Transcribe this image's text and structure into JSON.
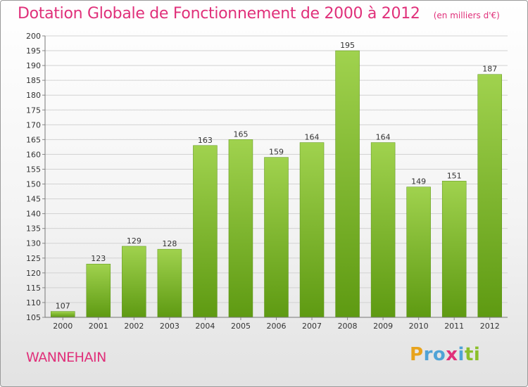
{
  "chart_data": {
    "type": "bar",
    "title": "Dotation Globale de Fonctionnement de 2000 à 2012",
    "unit": "(en milliers d'€)",
    "categories": [
      "2000",
      "2001",
      "2002",
      "2003",
      "2004",
      "2005",
      "2006",
      "2007",
      "2008",
      "2009",
      "2010",
      "2011",
      "2012"
    ],
    "values": [
      107,
      123,
      129,
      128,
      163,
      165,
      159,
      164,
      195,
      164,
      149,
      151,
      187
    ],
    "ylim": [
      105,
      200
    ],
    "ytick_step": 5,
    "grid": true,
    "bar_color": "#7cb832"
  },
  "footer": {
    "place_name": "WANNEHAIN",
    "brand_letters": [
      "P",
      "r",
      "o",
      "x",
      "i",
      "t",
      "i"
    ],
    "brand_colors": [
      "#e8a31c",
      "#4fa3d6",
      "#4fa3d6",
      "#e0307a",
      "#4fa3d6",
      "#8bbf2a",
      "#8bbf2a"
    ]
  }
}
